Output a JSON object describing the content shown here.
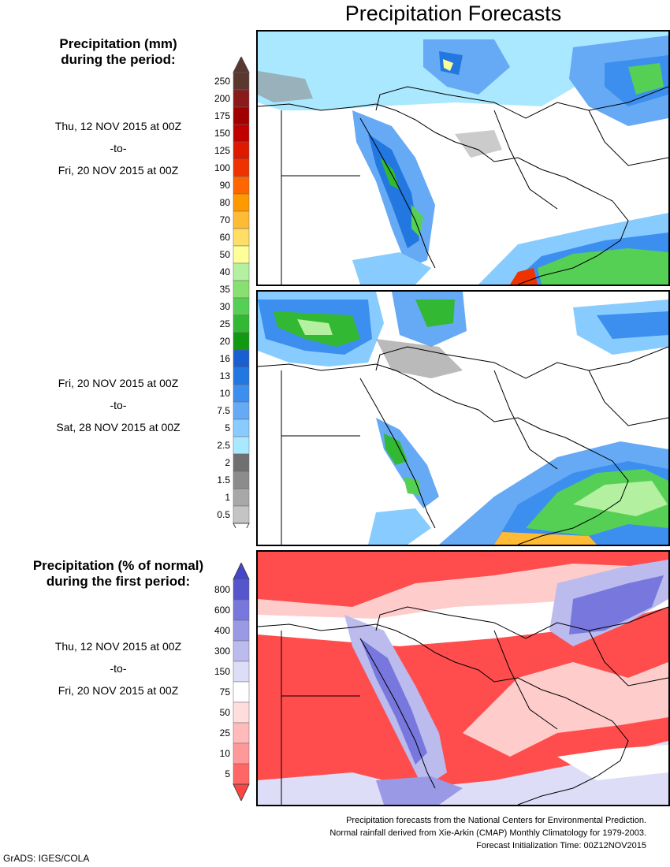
{
  "title": "Precipitation Forecasts",
  "panel1": {
    "heading_line1": "Precipitation (mm)",
    "heading_line2": "during the period:",
    "start": "Thu, 12 NOV 2015 at 00Z",
    "to": "-to-",
    "end": "Fri, 20 NOV 2015 at 00Z"
  },
  "panel2": {
    "start": "Fri, 20 NOV 2015 at 00Z",
    "to": "-to-",
    "end": "Sat, 28 NOV 2015 at 00Z"
  },
  "panel3": {
    "heading_line1": "Precipitation (% of normal)",
    "heading_line2": "during the first period:",
    "start": "Thu, 12 NOV 2015 at 00Z",
    "to": "-to-",
    "end": "Fri, 20 NOV 2015 at 00Z"
  },
  "precip_scale": {
    "labels": [
      "250",
      "200",
      "175",
      "150",
      "125",
      "100",
      "90",
      "80",
      "70",
      "60",
      "50",
      "40",
      "35",
      "30",
      "25",
      "20",
      "16",
      "13",
      "10",
      "7.5",
      "5",
      "2.5",
      "2",
      "1.5",
      "1",
      "0.5"
    ],
    "colors": [
      "#5a3830",
      "#8b1a1a",
      "#a00000",
      "#c00000",
      "#dd1a00",
      "#ee3300",
      "#ff6600",
      "#ff9900",
      "#ffbb33",
      "#ffdd66",
      "#ffff99",
      "#b3f0a0",
      "#88e070",
      "#55d055",
      "#33b833",
      "#119911",
      "#1a5fd0",
      "#2277e0",
      "#3c8fee",
      "#66aaf5",
      "#88ccff",
      "#aae8ff",
      "#707070",
      "#8c8c8c",
      "#a8a8a8",
      "#c4c4c4"
    ],
    "top_arrow_color": "#5a3830",
    "bottom_arrow_color": "#ffffff"
  },
  "percent_scale": {
    "labels": [
      "800",
      "600",
      "400",
      "300",
      "150",
      "75",
      "50",
      "25",
      "10",
      "5"
    ],
    "colors": [
      "#5555cc",
      "#7777dd",
      "#9999e6",
      "#bbbbee",
      "#ddddf7",
      "#ffffff",
      "#ffdddd",
      "#ffbbbb",
      "#ff9999",
      "#ff6666"
    ],
    "top_arrow_color": "#4444cc",
    "bottom_arrow_color": "#ff4444"
  },
  "footer": {
    "line1": "Precipitation forecasts from the National Centers for Environmental Prediction.",
    "line2": "Normal rainfall derived from Xie-Arkin (CMAP) Monthly Climatology for 1979-2003.",
    "line3": "Forecast Initialization Time: 00Z12NOV2015"
  },
  "credit": "GrADS: IGES/COLA"
}
